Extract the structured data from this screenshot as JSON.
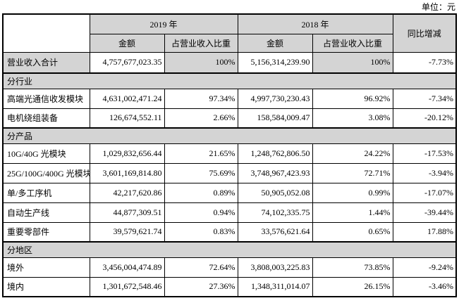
{
  "unit_label": "单位：元",
  "colors": {
    "shade_bg": "#d4d4d4",
    "border": "#000000"
  },
  "table": {
    "header": {
      "y2019": "2019 年",
      "y2018": "2018 年",
      "amount": "金额",
      "ratio": "占营业收入比重",
      "yoy": "同比增减"
    },
    "rows": [
      {
        "type": "data",
        "highlight": true,
        "label": "营业收入合计",
        "v2019": "4,757,677,023.35",
        "p2019": "100%",
        "v2018": "5,156,314,239.90",
        "p2018": "100%",
        "yoy": "-7.73%"
      },
      {
        "type": "section",
        "label": "分行业"
      },
      {
        "type": "data",
        "label": "高端光通信收发模块",
        "v2019": "4,631,002,471.24",
        "p2019": "97.34%",
        "v2018": "4,997,730,230.43",
        "p2018": "96.92%",
        "yoy": "-7.34%"
      },
      {
        "type": "data",
        "label": "电机绕组装备",
        "v2019": "126,674,552.11",
        "p2019": "2.66%",
        "v2018": "158,584,009.47",
        "p2018": "3.08%",
        "yoy": "-20.12%"
      },
      {
        "type": "section",
        "label": "分产品"
      },
      {
        "type": "data",
        "label": "10G/40G 光模块",
        "v2019": "1,029,832,656.44",
        "p2019": "21.65%",
        "v2018": "1,248,762,806.50",
        "p2018": "24.22%",
        "yoy": "-17.53%"
      },
      {
        "type": "data",
        "label": "25G/100G/400G 光模块",
        "v2019": "3,601,169,814.80",
        "p2019": "75.69%",
        "v2018": "3,748,967,423.93",
        "p2018": "72.71%",
        "yoy": "-3.94%"
      },
      {
        "type": "data",
        "label": "单/多工序机",
        "v2019": "42,217,620.86",
        "p2019": "0.89%",
        "v2018": "50,905,052.08",
        "p2018": "0.99%",
        "yoy": "-17.07%"
      },
      {
        "type": "data",
        "label": "自动生产线",
        "v2019": "44,877,309.51",
        "p2019": "0.94%",
        "v2018": "74,102,335.75",
        "p2018": "1.44%",
        "yoy": "-39.44%"
      },
      {
        "type": "data",
        "label": "重要零部件",
        "v2019": "39,579,621.74",
        "p2019": "0.83%",
        "v2018": "33,576,621.64",
        "p2018": "0.65%",
        "yoy": "17.88%"
      },
      {
        "type": "section",
        "label": "分地区"
      },
      {
        "type": "data",
        "label": "境外",
        "v2019": "3,456,004,474.89",
        "p2019": "72.64%",
        "v2018": "3,808,003,225.83",
        "p2018": "73.85%",
        "yoy": "-9.24%"
      },
      {
        "type": "data",
        "label": "境内",
        "v2019": "1,301,672,548.46",
        "p2019": "27.36%",
        "v2018": "1,348,311,014.07",
        "p2018": "26.15%",
        "yoy": "-3.46%"
      }
    ]
  }
}
